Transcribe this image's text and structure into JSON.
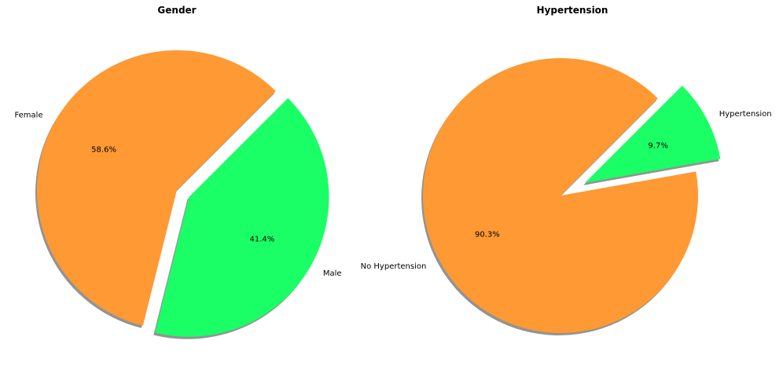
{
  "chart_data": [
    {
      "type": "pie",
      "title": "Gender",
      "categories": [
        "Female",
        "Male"
      ],
      "values": [
        58.6,
        41.4
      ],
      "percent_labels": [
        "58.6%",
        "41.4%"
      ],
      "explode": [
        0,
        0.1
      ],
      "start_angle_deg": 45,
      "shadow": true,
      "colors": [
        "#ff9933",
        "#1aff66"
      ]
    },
    {
      "type": "pie",
      "title": "Hypertension",
      "categories": [
        "No Hypertension",
        "Hypertension"
      ],
      "values": [
        90.3,
        9.7
      ],
      "percent_labels": [
        "90.3%",
        "9.7%"
      ],
      "explode": [
        0,
        0.2
      ],
      "start_angle_deg": 45,
      "shadow": true,
      "colors": [
        "#ff9933",
        "#1aff66"
      ]
    }
  ]
}
